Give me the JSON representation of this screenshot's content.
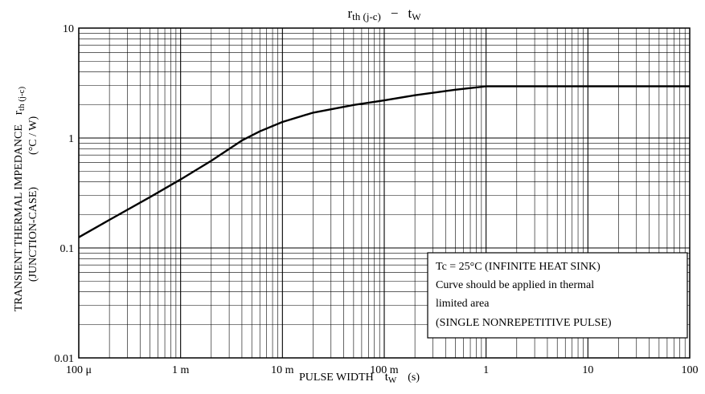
{
  "chart_data": {
    "type": "line",
    "title": {
      "main": "r",
      "main_sub": "th (j-c)",
      "dash": "−",
      "right": "t",
      "right_sub": "W"
    },
    "xlabel": {
      "text": "PULSE WIDTH",
      "symbol": "t",
      "symbol_sub": "W",
      "unit": "(s)"
    },
    "ylabel": {
      "line1": "TRANSIENT THERMAL IMPEDANCE",
      "symbol": "r",
      "symbol_sub": "th (j-c)",
      "unit": "(°C / W)",
      "line2": "(JUNCTION-CASE)"
    },
    "x_scale": "log",
    "y_scale": "log",
    "xlim": [
      0.0001,
      100
    ],
    "ylim": [
      0.01,
      10
    ],
    "x_ticks": [
      0.0001,
      0.001,
      0.01,
      0.1,
      1,
      10,
      100
    ],
    "x_tick_labels": [
      "100 μ",
      "1 m",
      "10 m",
      "100 m",
      "1",
      "10",
      "100"
    ],
    "y_ticks": [
      0.01,
      0.1,
      1,
      10
    ],
    "y_tick_labels": [
      "0.01",
      "0.1",
      "1",
      "10"
    ],
    "grid": true,
    "series": [
      {
        "x": [
          0.0001,
          0.0002,
          0.0005,
          0.001,
          0.002,
          0.004,
          0.006,
          0.01,
          0.02,
          0.05,
          0.1,
          0.2,
          0.5,
          1,
          2,
          5,
          10,
          100
        ],
        "y": [
          0.125,
          0.18,
          0.29,
          0.42,
          0.62,
          0.95,
          1.15,
          1.4,
          1.7,
          2.0,
          2.2,
          2.45,
          2.75,
          2.95,
          2.95,
          2.95,
          2.95,
          2.95
        ]
      }
    ],
    "annotation": [
      "Tc = 25°C (INFINITE HEAT SINK)",
      "Curve should be applied in thermal",
      "limited area",
      "(SINGLE NONREPETITIVE PULSE)"
    ]
  }
}
